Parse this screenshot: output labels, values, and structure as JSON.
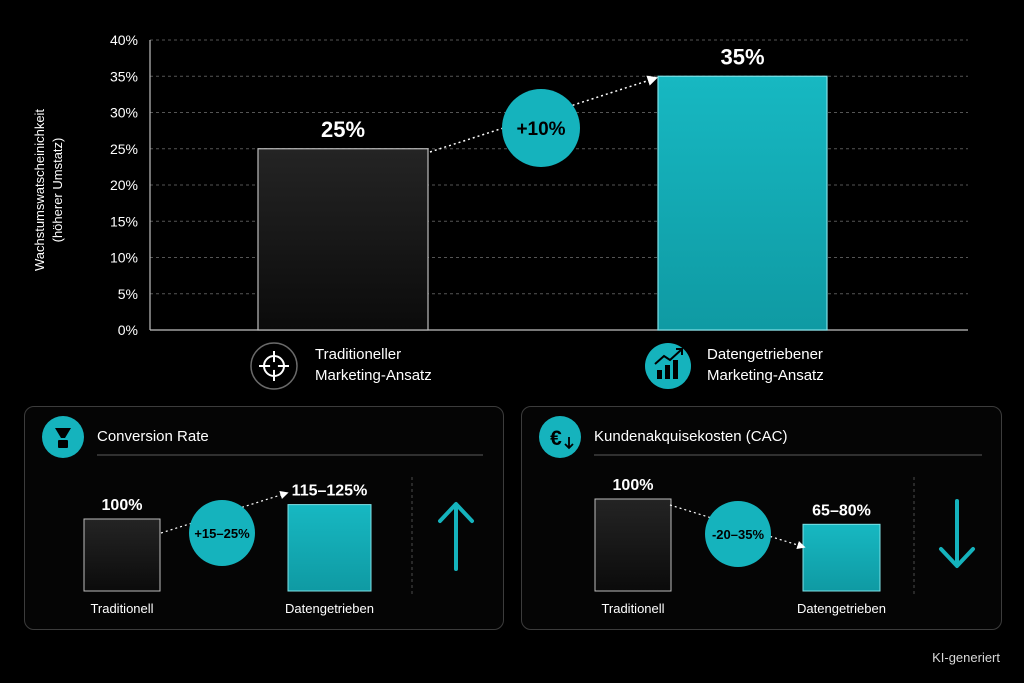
{
  "colors": {
    "teal": "#15b3bd",
    "dark_bar_top": "#232323",
    "dark_bar_bottom": "#0a0a0a",
    "grid": "#555555"
  },
  "main": {
    "ylabel_line1": "Wachstumswatscheinichkeit",
    "ylabel_line2": "(höherer Umstatz)",
    "delta_label": "+10%",
    "categories": [
      {
        "line1": "Traditioneller",
        "line2": "Marketing-Ansatz",
        "icon": "target-icon"
      },
      {
        "line1": "Datengetriebener",
        "line2": "Marketing-Ansatz",
        "icon": "growth-chart-icon"
      }
    ]
  },
  "panels": [
    {
      "title": "Conversion Rate",
      "icon": "funnel-icon",
      "trend": "up-arrow-icon",
      "delta_label": "+15–25%",
      "bars": [
        {
          "label": "Traditionell",
          "value_label": "100%"
        },
        {
          "label": "Datengetrieben",
          "value_label": "115–125%"
        }
      ]
    },
    {
      "title": "Kundenakquisekosten (CAC)",
      "icon": "euro-down-icon",
      "trend": "down-arrow-icon",
      "delta_label": "-20–35%",
      "bars": [
        {
          "label": "Traditionell",
          "value_label": "100%"
        },
        {
          "label": "Datengetrieben",
          "value_label": "65–80%"
        }
      ]
    }
  ],
  "footer": {
    "text": "KI-generiert"
  },
  "chart_data": [
    {
      "type": "bar",
      "categories": [
        "Traditioneller Marketing-Ansatz",
        "Datengetriebener Marketing-Ansatz"
      ],
      "values": [
        25,
        35
      ],
      "value_labels": [
        "25%",
        "35%"
      ],
      "ylabel": "Wachstumswatscheinichkeit (höherer Umstatz)",
      "ylim": [
        0,
        40
      ],
      "yticks": [
        0,
        5,
        10,
        15,
        20,
        25,
        30,
        35,
        40
      ],
      "ytick_labels": [
        "0%",
        "5%",
        "10%",
        "15%",
        "20%",
        "25%",
        "30%",
        "35%",
        "40%"
      ],
      "grid": true,
      "annotation": "+10%"
    },
    {
      "type": "bar",
      "title": "Conversion Rate",
      "categories": [
        "Traditionell",
        "Datengetrieben"
      ],
      "values": [
        100,
        120
      ],
      "value_labels": [
        "100%",
        "115–125%"
      ],
      "annotation": "+15–25%",
      "ylim": [
        0,
        140
      ]
    },
    {
      "type": "bar",
      "title": "Kundenakquisekosten (CAC)",
      "categories": [
        "Traditionell",
        "Datengetrieben"
      ],
      "values": [
        100,
        72.5
      ],
      "value_labels": [
        "100%",
        "65–80%"
      ],
      "annotation": "-20–35%",
      "ylim": [
        0,
        115
      ]
    }
  ]
}
